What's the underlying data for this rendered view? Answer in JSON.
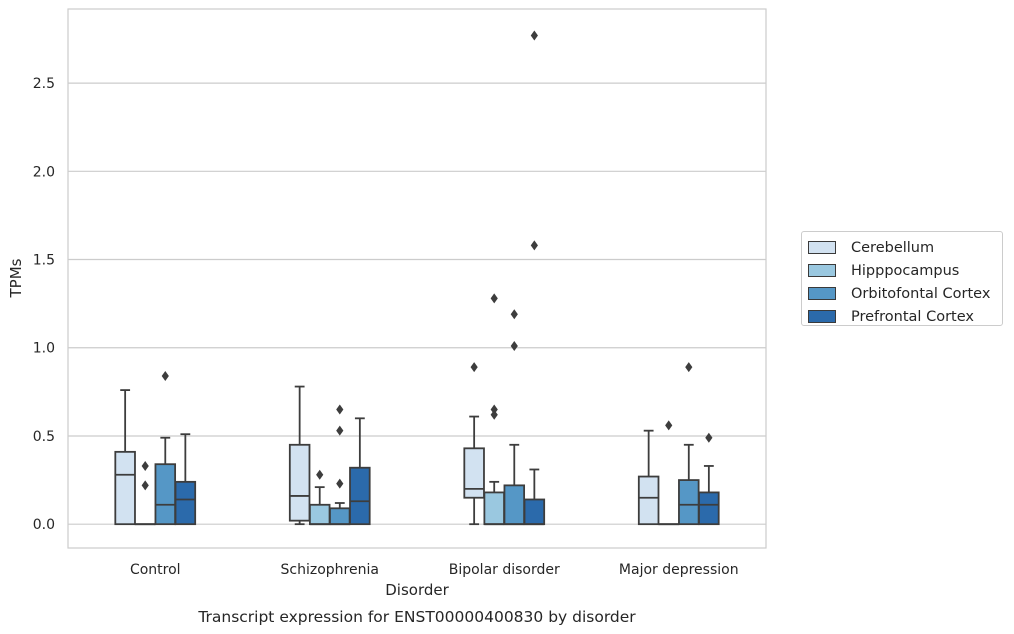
{
  "chart_data": {
    "type": "box",
    "title": "Transcript expression for ENST00000400830 by disorder",
    "xlabel": "Disorder",
    "ylabel": "TPMs",
    "ylim": [
      -0.135,
      2.92
    ],
    "yticks": [
      "0.0",
      "0.5",
      "1.0",
      "1.5",
      "2.0",
      "2.5"
    ],
    "categories": [
      "Control",
      "Schizophrenia",
      "Bipolar disorder",
      "Major depression"
    ],
    "grid": "horizontal",
    "legend_position": "right",
    "series": [
      {
        "name": "Cerebellum",
        "color": "#d2e2f1",
        "boxes": [
          {
            "min": 0.0,
            "q1": 0.0,
            "median": 0.28,
            "q3": 0.41,
            "max": 0.76,
            "outliers": []
          },
          {
            "min": 0.0,
            "q1": 0.02,
            "median": 0.16,
            "q3": 0.45,
            "max": 0.78,
            "outliers": []
          },
          {
            "min": 0.0,
            "q1": 0.15,
            "median": 0.2,
            "q3": 0.43,
            "max": 0.61,
            "outliers": [
              0.89
            ]
          },
          {
            "min": 0.0,
            "q1": 0.0,
            "median": 0.15,
            "q3": 0.27,
            "max": 0.53,
            "outliers": []
          }
        ]
      },
      {
        "name": "Hipppocampus",
        "color": "#9ac8e0",
        "boxes": [
          {
            "min": 0.0,
            "q1": 0.0,
            "median": 0.0,
            "q3": 0.0,
            "max": 0.0,
            "outliers": [
              0.33,
              0.22
            ]
          },
          {
            "min": 0.0,
            "q1": 0.0,
            "median": 0.0,
            "q3": 0.11,
            "max": 0.21,
            "outliers": [
              0.28
            ]
          },
          {
            "min": 0.0,
            "q1": 0.0,
            "median": 0.0,
            "q3": 0.18,
            "max": 0.24,
            "outliers": [
              1.28,
              0.65,
              0.62
            ]
          },
          {
            "min": 0.0,
            "q1": 0.0,
            "median": 0.0,
            "q3": 0.0,
            "max": 0.0,
            "outliers": [
              0.56
            ]
          }
        ]
      },
      {
        "name": "Orbitofontal Cortex",
        "color": "#5597c6",
        "boxes": [
          {
            "min": 0.0,
            "q1": 0.0,
            "median": 0.11,
            "q3": 0.34,
            "max": 0.49,
            "outliers": [
              0.84
            ]
          },
          {
            "min": 0.0,
            "q1": 0.0,
            "median": 0.0,
            "q3": 0.09,
            "max": 0.12,
            "outliers": [
              0.65,
              0.53,
              0.23
            ]
          },
          {
            "min": 0.0,
            "q1": 0.0,
            "median": 0.0,
            "q3": 0.22,
            "max": 0.45,
            "outliers": [
              1.19,
              1.01
            ]
          },
          {
            "min": 0.0,
            "q1": 0.0,
            "median": 0.11,
            "q3": 0.25,
            "max": 0.45,
            "outliers": [
              0.89
            ]
          }
        ]
      },
      {
        "name": "Prefrontal Cortex",
        "color": "#2b6aab",
        "boxes": [
          {
            "min": 0.0,
            "q1": 0.0,
            "median": 0.14,
            "q3": 0.24,
            "max": 0.51,
            "outliers": []
          },
          {
            "min": 0.0,
            "q1": 0.0,
            "median": 0.13,
            "q3": 0.32,
            "max": 0.6,
            "outliers": []
          },
          {
            "min": 0.0,
            "q1": 0.0,
            "median": 0.0,
            "q3": 0.14,
            "max": 0.31,
            "outliers": [
              2.77,
              1.58
            ]
          },
          {
            "min": 0.0,
            "q1": 0.0,
            "median": 0.11,
            "q3": 0.18,
            "max": 0.33,
            "outliers": [
              0.49
            ]
          }
        ]
      }
    ]
  }
}
